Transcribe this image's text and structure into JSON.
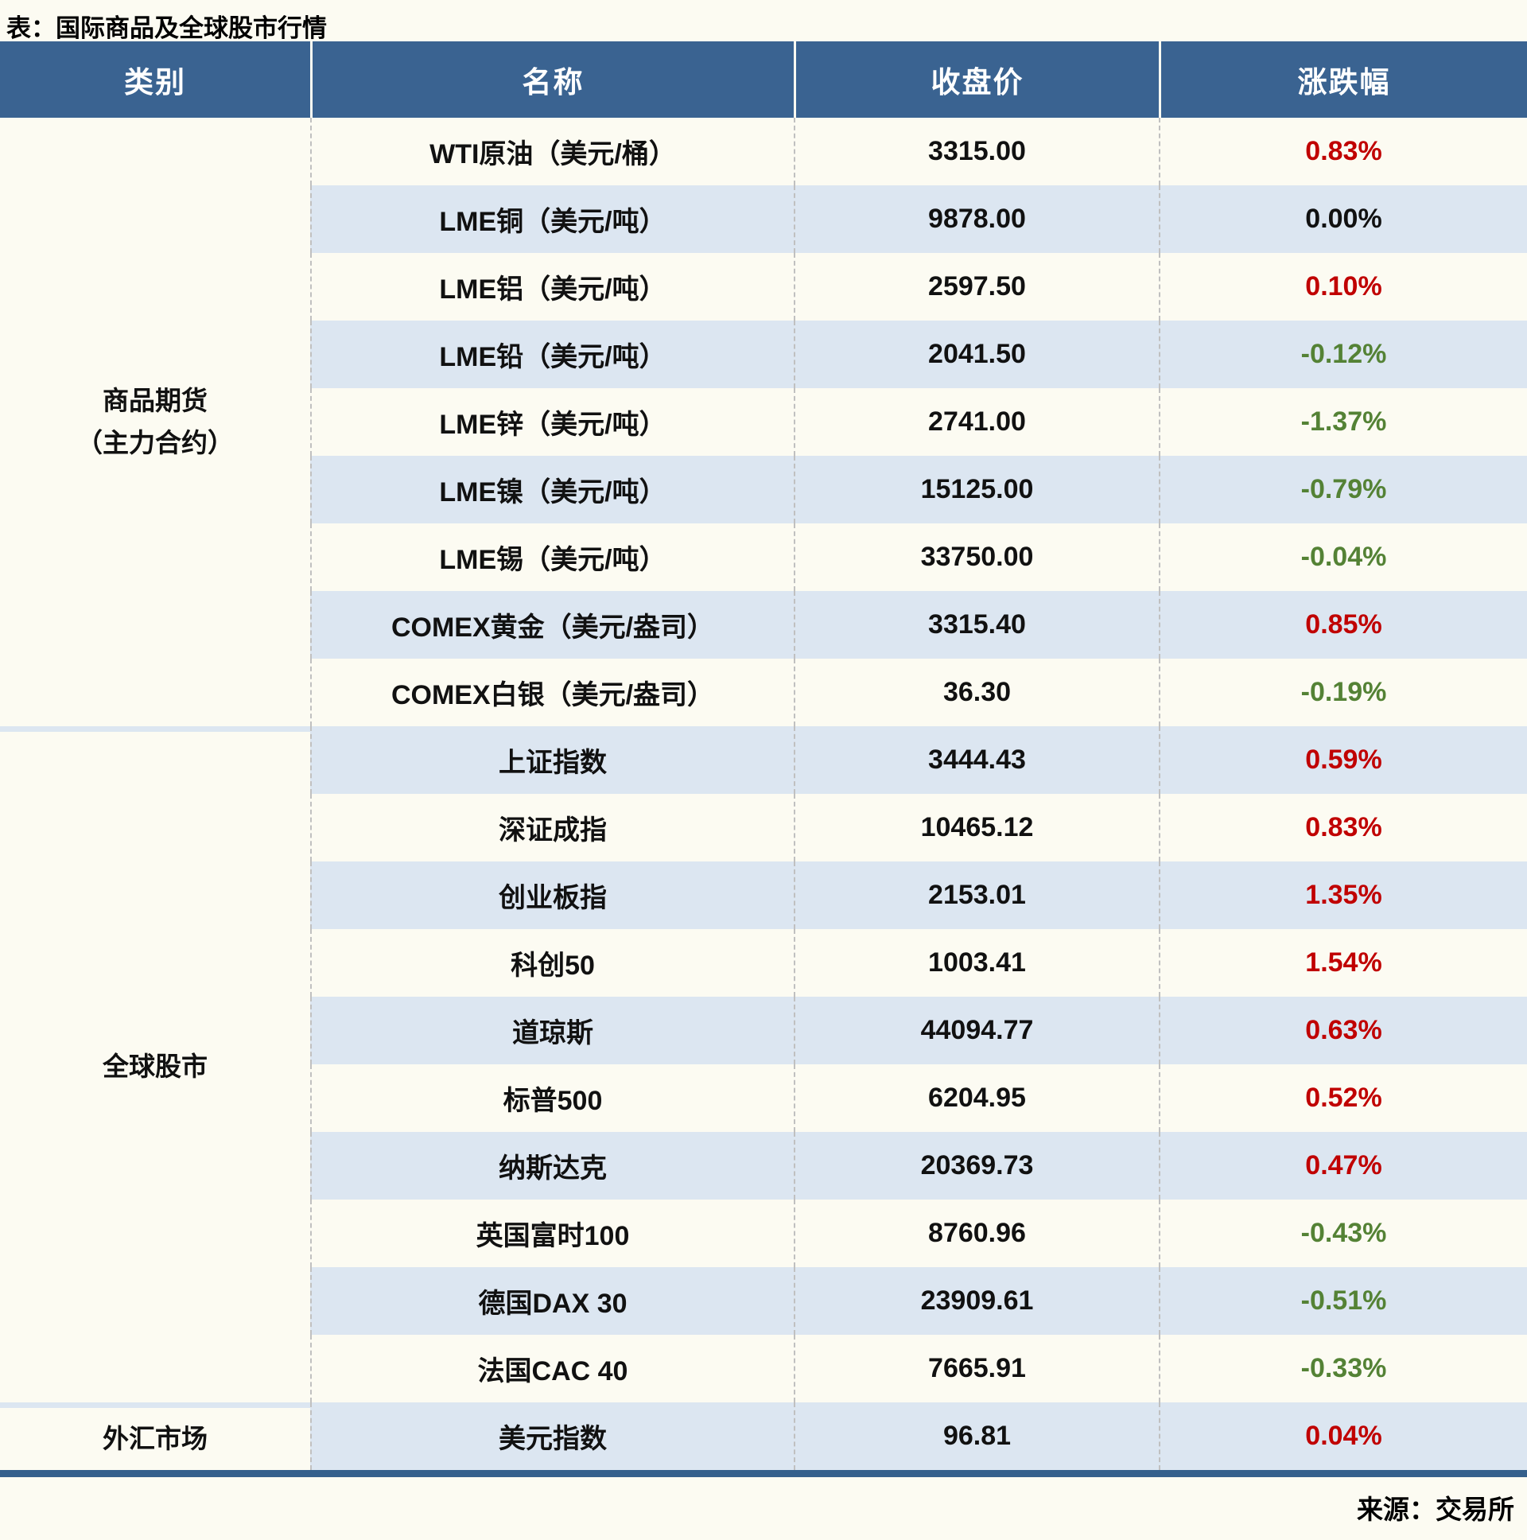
{
  "chart_data": {
    "type": "table",
    "title": "表：国际商品及全球股市行情",
    "columns": [
      "类别",
      "名称",
      "收盘价",
      "涨跌幅"
    ],
    "sections": [
      {
        "category": "商品期货\n（主力合约）",
        "rows": [
          {
            "name": "WTI原油（美元/桶）",
            "close": "3315.00",
            "change": "0.83%",
            "trend": "up"
          },
          {
            "name": "LME铜（美元/吨）",
            "close": "9878.00",
            "change": "0.00%",
            "trend": "flat"
          },
          {
            "name": "LME铝（美元/吨）",
            "close": "2597.50",
            "change": "0.10%",
            "trend": "up"
          },
          {
            "name": "LME铅（美元/吨）",
            "close": "2041.50",
            "change": "-0.12%",
            "trend": "down"
          },
          {
            "name": "LME锌（美元/吨）",
            "close": "2741.00",
            "change": "-1.37%",
            "trend": "down"
          },
          {
            "name": "LME镍（美元/吨）",
            "close": "15125.00",
            "change": "-0.79%",
            "trend": "down"
          },
          {
            "name": "LME锡（美元/吨）",
            "close": "33750.00",
            "change": "-0.04%",
            "trend": "down"
          },
          {
            "name": "COMEX黄金（美元/盎司）",
            "close": "3315.40",
            "change": "0.85%",
            "trend": "up"
          },
          {
            "name": "COMEX白银（美元/盎司）",
            "close": "36.30",
            "change": "-0.19%",
            "trend": "down"
          }
        ]
      },
      {
        "category": "全球股市",
        "rows": [
          {
            "name": "上证指数",
            "close": "3444.43",
            "change": "0.59%",
            "trend": "up"
          },
          {
            "name": "深证成指",
            "close": "10465.12",
            "change": "0.83%",
            "trend": "up"
          },
          {
            "name": "创业板指",
            "close": "2153.01",
            "change": "1.35%",
            "trend": "up"
          },
          {
            "name": "科创50",
            "close": "1003.41",
            "change": "1.54%",
            "trend": "up"
          },
          {
            "name": "道琼斯",
            "close": "44094.77",
            "change": "0.63%",
            "trend": "up"
          },
          {
            "name": "标普500",
            "close": "6204.95",
            "change": "0.52%",
            "trend": "up"
          },
          {
            "name": "纳斯达克",
            "close": "20369.73",
            "change": "0.47%",
            "trend": "up"
          },
          {
            "name": "英国富时100",
            "close": "8760.96",
            "change": "-0.43%",
            "trend": "down"
          },
          {
            "name": "德国DAX 30",
            "close": "23909.61",
            "change": "-0.51%",
            "trend": "down"
          },
          {
            "name": "法国CAC 40",
            "close": "7665.91",
            "change": "-0.33%",
            "trend": "down"
          }
        ]
      },
      {
        "category": "外汇市场",
        "rows": [
          {
            "name": "美元指数",
            "close": "96.81",
            "change": "0.04%",
            "trend": "up"
          }
        ]
      }
    ],
    "source": "来源：交易所",
    "colors": {
      "up": "#c00000",
      "down": "#548235",
      "flat": "#111111",
      "header_bg": "#3a6391",
      "header_text": "#ffffff",
      "stripe": "#dce6f1",
      "page_bg": "#fcfbf2",
      "bottom_border": "#35608c"
    },
    "layout": {
      "legend": "none",
      "grid": "dashed-vertical",
      "stripe_pattern": "alternating"
    }
  }
}
